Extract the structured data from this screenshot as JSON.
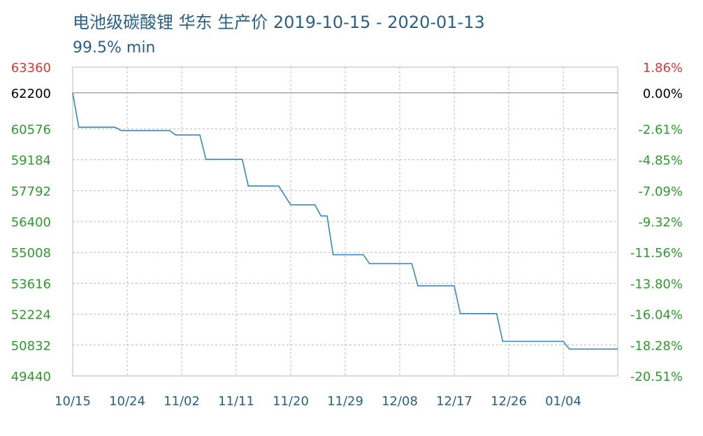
{
  "title": "电池级碳酸锂 华东 生产价 2019-10-15 - 2020-01-13",
  "subtitle": "99.5% min",
  "colors": {
    "title": "#2a5f86",
    "line": "#3b88be",
    "grid": "#b8b8b8",
    "baseline": "#8c8c8c",
    "up": "#d23a3a",
    "down": "#2f9a2f",
    "neutral": "#000000",
    "xlabel": "#2a5f86"
  },
  "chart_data": {
    "type": "line",
    "ylim": [
      49440,
      63360
    ],
    "reference_value": 62200,
    "y_ticks": [
      63360,
      62200,
      60576,
      59184,
      57792,
      56400,
      55008,
      53616,
      52224,
      50832,
      49440
    ],
    "right_ticks": [
      "1.86%",
      "0.00%",
      "-2.61%",
      "-4.85%",
      "-7.09%",
      "-9.32%",
      "-11.56%",
      "-13.80%",
      "-16.04%",
      "-18.28%",
      "-20.51%"
    ],
    "x_ticks": [
      "10/15",
      "10/24",
      "11/02",
      "11/11",
      "11/20",
      "11/29",
      "12/08",
      "12/17",
      "12/26",
      "01/04"
    ],
    "x_domain": [
      "2019-10-15",
      "2020-01-13"
    ],
    "grid": true,
    "series": [
      {
        "x": [
          "2019-10-15",
          "2019-10-16",
          "2019-10-22",
          "2019-10-23",
          "2019-10-31",
          "2019-11-01",
          "2019-11-05",
          "2019-11-06",
          "2019-11-12",
          "2019-11-13",
          "2019-11-18",
          "2019-11-20",
          "2019-11-24",
          "2019-11-25",
          "2019-11-26",
          "2019-11-27",
          "2019-12-02",
          "2019-12-03",
          "2019-12-10",
          "2019-12-11",
          "2019-12-17",
          "2019-12-18",
          "2019-12-24",
          "2019-12-25",
          "2020-01-04",
          "2020-01-05",
          "2020-01-13"
        ],
        "y": [
          62200,
          60650,
          60650,
          60500,
          60500,
          60300,
          60300,
          59200,
          59200,
          58000,
          58000,
          57150,
          57150,
          56650,
          56650,
          54900,
          54900,
          54500,
          54500,
          53500,
          53500,
          52250,
          52250,
          51000,
          51000,
          50650,
          50650
        ]
      }
    ]
  }
}
